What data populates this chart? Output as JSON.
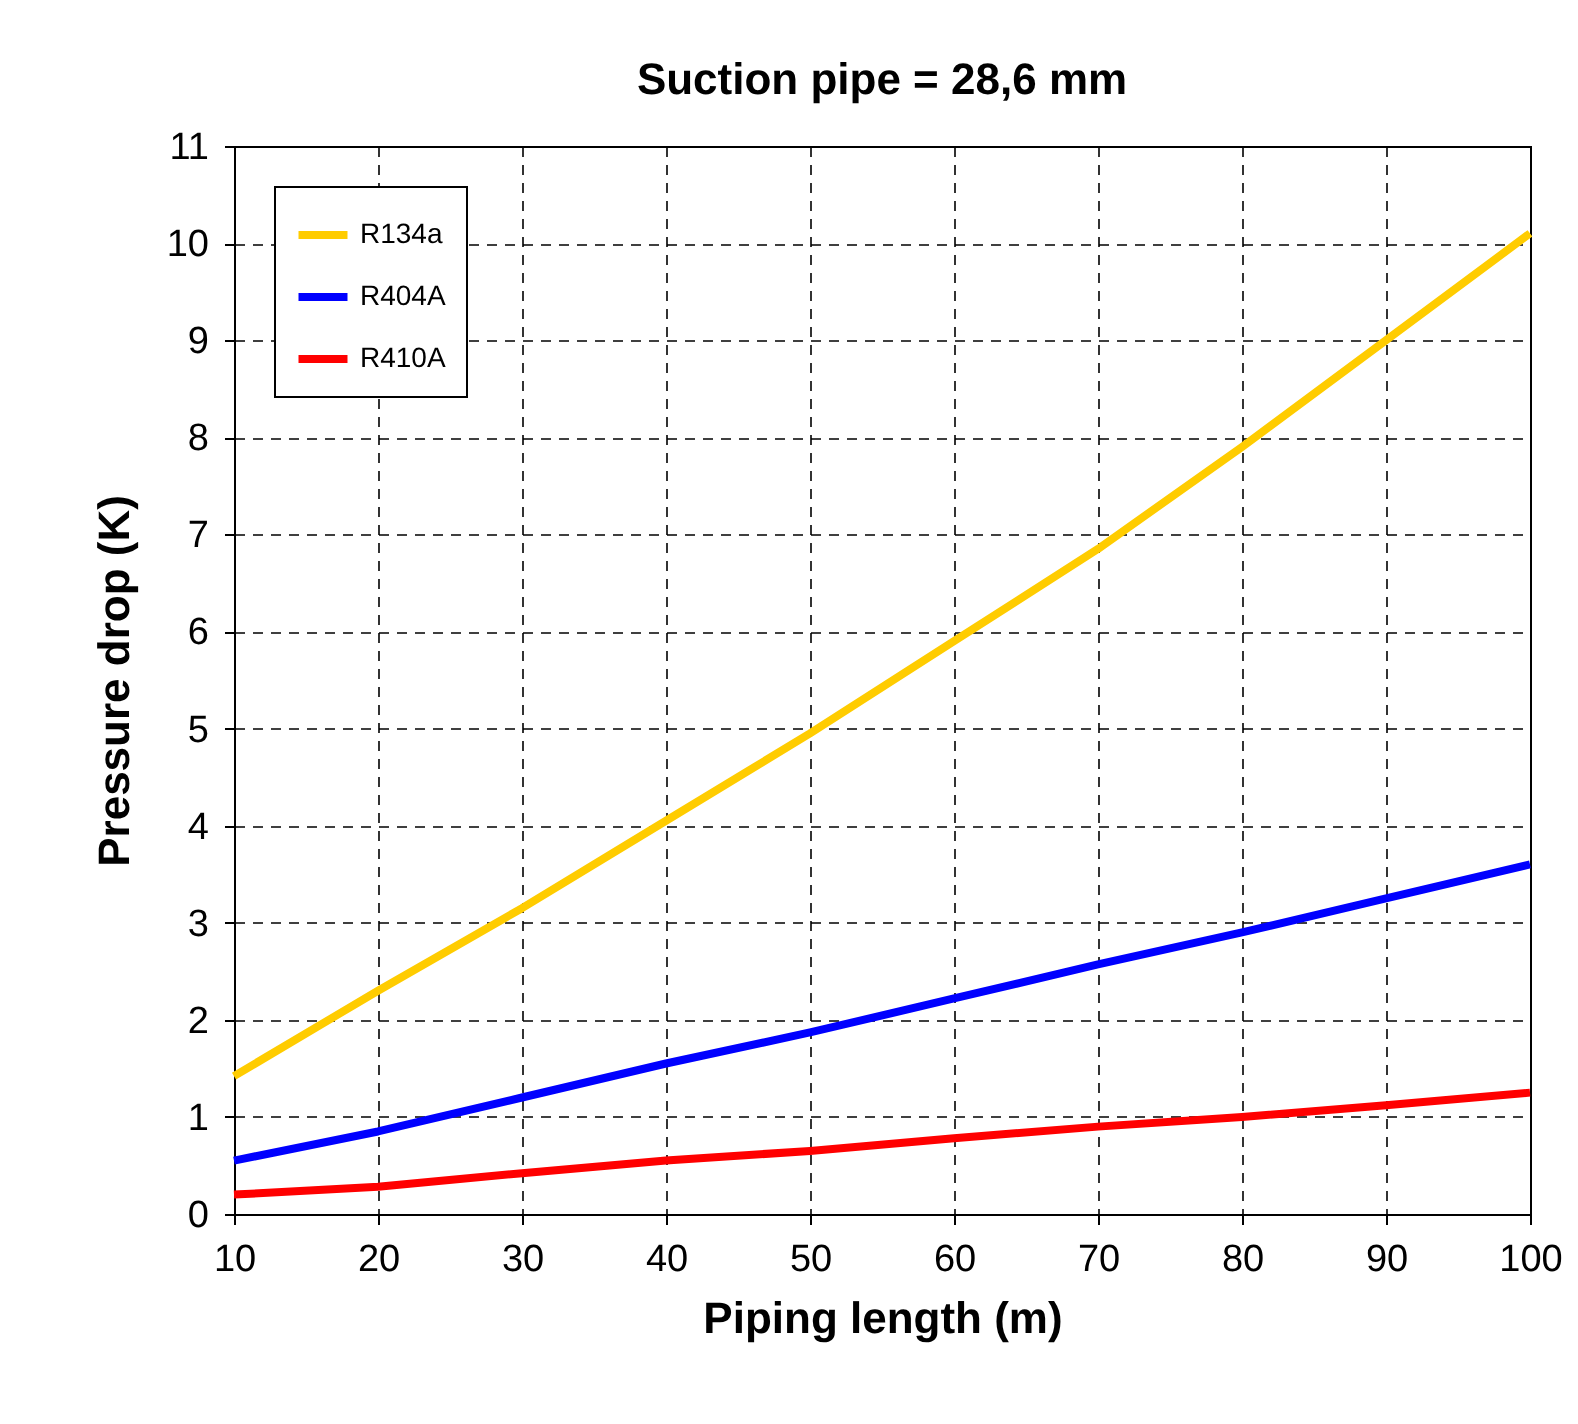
{
  "chart_data": {
    "type": "line",
    "title": "Suction pipe = 28,6 mm",
    "xlabel": "Piping length (m)",
    "ylabel": "Pressure drop (K)",
    "x": [
      10,
      20,
      30,
      40,
      50,
      60,
      70,
      80,
      90,
      100
    ],
    "series": [
      {
        "name": "R134a",
        "color": "#ffcc00",
        "values": [
          1.42,
          2.3,
          3.15,
          4.05,
          4.95,
          5.9,
          6.85,
          7.9,
          9.0,
          10.1
        ]
      },
      {
        "name": "R404A",
        "color": "#0000ff",
        "values": [
          0.55,
          0.85,
          1.2,
          1.55,
          1.87,
          2.22,
          2.57,
          2.9,
          3.25,
          3.6
        ]
      },
      {
        "name": "R410A",
        "color": "#ff0000",
        "values": [
          0.2,
          0.28,
          0.42,
          0.55,
          0.65,
          0.78,
          0.9,
          1.0,
          1.12,
          1.25
        ]
      }
    ],
    "xlim": [
      10,
      100
    ],
    "xticks": [
      10,
      20,
      30,
      40,
      50,
      60,
      70,
      80,
      90,
      100
    ],
    "ylim": [
      0,
      11
    ],
    "yticks": [
      0,
      1,
      2,
      3,
      4,
      5,
      6,
      7,
      8,
      9,
      10,
      11
    ],
    "grid": true,
    "legend": "top left",
    "marker": "none",
    "line_style": "solid"
  }
}
